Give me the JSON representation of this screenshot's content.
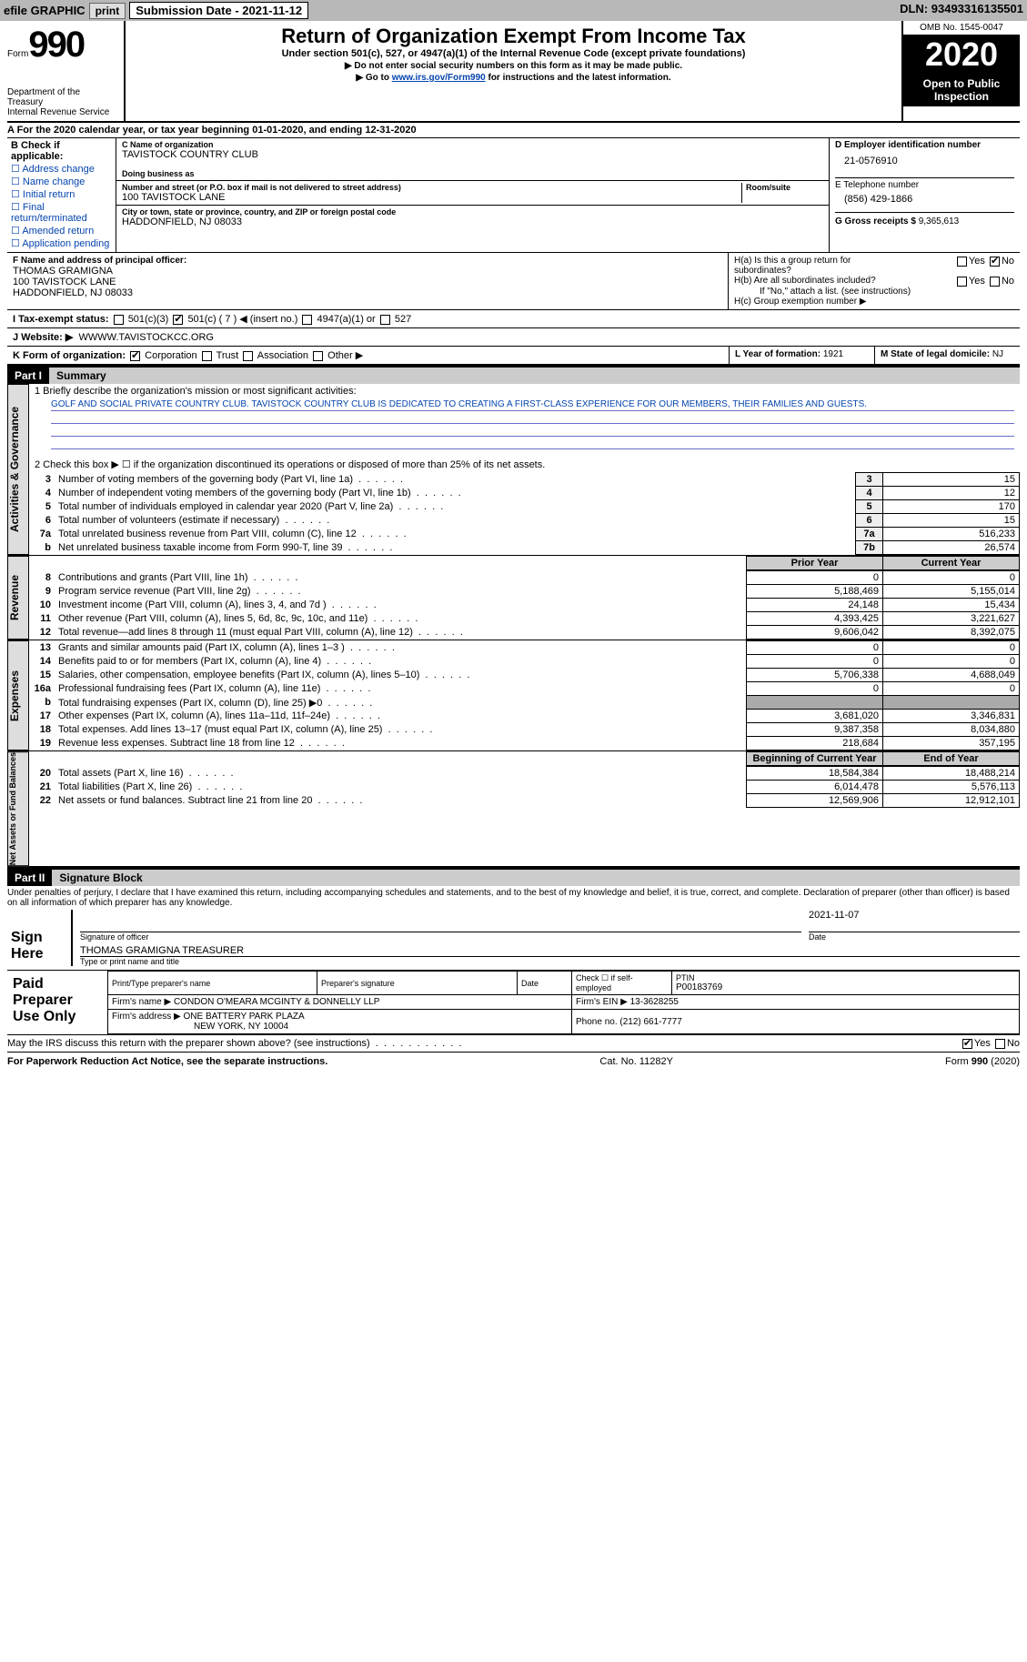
{
  "topbar": {
    "efile": "efile GRAPHIC",
    "print": "print",
    "subdate_label": "Submission Date - ",
    "subdate": "2021-11-12",
    "dln_label": "DLN: ",
    "dln": "93493316135501"
  },
  "header": {
    "form_word": "Form",
    "form_num": "990",
    "dept1": "Department of the Treasury",
    "dept2": "Internal Revenue Service",
    "title": "Return of Organization Exempt From Income Tax",
    "sub": "Under section 501(c), 527, or 4947(a)(1) of the Internal Revenue Code (except private foundations)",
    "note1": "▶ Do not enter social security numbers on this form as it may be made public.",
    "note2_pre": "▶ Go to ",
    "note2_link": "www.irs.gov/Form990",
    "note2_post": " for instructions and the latest information.",
    "omb": "OMB No. 1545-0047",
    "year": "2020",
    "open": "Open to Public Inspection"
  },
  "period": {
    "prefix": "A For the 2020 calendar year, or tax year beginning ",
    "begin": "01-01-2020",
    "mid": ", and ending ",
    "end": "12-31-2020"
  },
  "section_b": {
    "label": "B Check if applicable:",
    "opts": [
      "Address change",
      "Name change",
      "Initial return",
      "Final return/terminated",
      "Amended return",
      "Application pending"
    ]
  },
  "section_c": {
    "name_label": "C Name of organization",
    "name": "TAVISTOCK COUNTRY CLUB",
    "dba_label": "Doing business as",
    "street_label": "Number and street (or P.O. box if mail is not delivered to street address)",
    "room_label": "Room/suite",
    "street": "100 TAVISTOCK LANE",
    "city_label": "City or town, state or province, country, and ZIP or foreign postal code",
    "city": "HADDONFIELD, NJ  08033"
  },
  "section_d": {
    "ein_label": "D Employer identification number",
    "ein": "21-0576910",
    "tel_label": "E Telephone number",
    "tel": "(856) 429-1866",
    "gross_label": "G Gross receipts $ ",
    "gross": "9,365,613"
  },
  "section_f": {
    "label": "F Name and address of principal officer:",
    "name": "THOMAS GRAMIGNA",
    "addr1": "100 TAVISTOCK LANE",
    "addr2": "HADDONFIELD, NJ  08033"
  },
  "section_h": {
    "ha": "H(a)  Is this a group return for subordinates?",
    "hb": "H(b)  Are all subordinates included?",
    "hb_note": "If \"No,\" attach a list. (see instructions)",
    "hc": "H(c)  Group exemption number ▶",
    "yes": "Yes",
    "no": "No"
  },
  "section_i": {
    "label": "I  Tax-exempt status:",
    "c3": "501(c)(3)",
    "c7": "501(c) ( 7 ) ◀ (insert no.)",
    "a1": "4947(a)(1) or",
    "s527": "527"
  },
  "section_j": {
    "label": "J  Website: ▶",
    "url": "WWWW.TAVISTOCKCC.ORG"
  },
  "section_k": {
    "label": "K Form of organization:",
    "corp": "Corporation",
    "trust": "Trust",
    "assoc": "Association",
    "other": "Other ▶"
  },
  "section_l": {
    "label": "L Year of formation: ",
    "val": "1921"
  },
  "section_m": {
    "label": "M State of legal domicile: ",
    "val": "NJ"
  },
  "part1": {
    "label": "Part I",
    "title": "Summary",
    "l1_label": "1  Briefly describe the organization's mission or most significant activities:",
    "l1_text": "GOLF AND SOCIAL PRIVATE COUNTRY CLUB. TAVISTOCK COUNTRY CLUB IS DEDICATED TO CREATING A FIRST-CLASS EXPERIENCE FOR OUR MEMBERS, THEIR FAMILIES AND GUESTS.",
    "l2": "2  Check this box ▶ ☐ if the organization discontinued its operations or disposed of more than 25% of its net assets.",
    "lines_top": [
      {
        "n": "3",
        "t": "Number of voting members of the governing body (Part VI, line 1a)",
        "box": "3",
        "v": "15"
      },
      {
        "n": "4",
        "t": "Number of independent voting members of the governing body (Part VI, line 1b)",
        "box": "4",
        "v": "12"
      },
      {
        "n": "5",
        "t": "Total number of individuals employed in calendar year 2020 (Part V, line 2a)",
        "box": "5",
        "v": "170"
      },
      {
        "n": "6",
        "t": "Total number of volunteers (estimate if necessary)",
        "box": "6",
        "v": "15"
      },
      {
        "n": "7a",
        "t": "Total unrelated business revenue from Part VIII, column (C), line 12",
        "box": "7a",
        "v": "516,233"
      },
      {
        "n": "b",
        "t": "Net unrelated business taxable income from Form 990-T, line 39",
        "box": "7b",
        "v": "26,574"
      }
    ],
    "hdr_prior": "Prior Year",
    "hdr_current": "Current Year",
    "revenue": [
      {
        "n": "8",
        "t": "Contributions and grants (Part VIII, line 1h)",
        "p": "0",
        "c": "0"
      },
      {
        "n": "9",
        "t": "Program service revenue (Part VIII, line 2g)",
        "p": "5,188,469",
        "c": "5,155,014"
      },
      {
        "n": "10",
        "t": "Investment income (Part VIII, column (A), lines 3, 4, and 7d )",
        "p": "24,148",
        "c": "15,434"
      },
      {
        "n": "11",
        "t": "Other revenue (Part VIII, column (A), lines 5, 6d, 8c, 9c, 10c, and 11e)",
        "p": "4,393,425",
        "c": "3,221,627"
      },
      {
        "n": "12",
        "t": "Total revenue—add lines 8 through 11 (must equal Part VIII, column (A), line 12)",
        "p": "9,606,042",
        "c": "8,392,075"
      }
    ],
    "expenses": [
      {
        "n": "13",
        "t": "Grants and similar amounts paid (Part IX, column (A), lines 1–3 )",
        "p": "0",
        "c": "0"
      },
      {
        "n": "14",
        "t": "Benefits paid to or for members (Part IX, column (A), line 4)",
        "p": "0",
        "c": "0"
      },
      {
        "n": "15",
        "t": "Salaries, other compensation, employee benefits (Part IX, column (A), lines 5–10)",
        "p": "5,706,338",
        "c": "4,688,049"
      },
      {
        "n": "16a",
        "t": "Professional fundraising fees (Part IX, column (A), line 11e)",
        "p": "0",
        "c": "0"
      },
      {
        "n": "b",
        "t": "Total fundraising expenses (Part IX, column (D), line 25) ▶0",
        "p": "",
        "c": "",
        "shade": true
      },
      {
        "n": "17",
        "t": "Other expenses (Part IX, column (A), lines 11a–11d, 11f–24e)",
        "p": "3,681,020",
        "c": "3,346,831"
      },
      {
        "n": "18",
        "t": "Total expenses. Add lines 13–17 (must equal Part IX, column (A), line 25)",
        "p": "9,387,358",
        "c": "8,034,880"
      },
      {
        "n": "19",
        "t": "Revenue less expenses. Subtract line 18 from line 12",
        "p": "218,684",
        "c": "357,195"
      }
    ],
    "hdr_begin": "Beginning of Current Year",
    "hdr_end": "End of Year",
    "netassets": [
      {
        "n": "20",
        "t": "Total assets (Part X, line 16)",
        "p": "18,584,384",
        "c": "18,488,214"
      },
      {
        "n": "21",
        "t": "Total liabilities (Part X, line 26)",
        "p": "6,014,478",
        "c": "5,576,113"
      },
      {
        "n": "22",
        "t": "Net assets or fund balances. Subtract line 21 from line 20",
        "p": "12,569,906",
        "c": "12,912,101"
      }
    ],
    "vert_gov": "Activities & Governance",
    "vert_rev": "Revenue",
    "vert_exp": "Expenses",
    "vert_net": "Net Assets or Fund Balances"
  },
  "part2": {
    "label": "Part II",
    "title": "Signature Block",
    "decl": "Under penalties of perjury, I declare that I have examined this return, including accompanying schedules and statements, and to the best of my knowledge and belief, it is true, correct, and complete. Declaration of preparer (other than officer) is based on all information of which preparer has any knowledge.",
    "sign_here": "Sign Here",
    "sig_officer": "Signature of officer",
    "sig_date_label": "Date",
    "sig_date": "2021-11-07",
    "sig_name": "THOMAS GRAMIGNA  TREASURER",
    "sig_name_label": "Type or print name and title",
    "paid_label": "Paid Preparer Use Only",
    "prep_name_label": "Print/Type preparer's name",
    "prep_sig_label": "Preparer's signature",
    "date_label": "Date",
    "check_self": "Check ☐ if self-employed",
    "ptin_label": "PTIN",
    "ptin": "P00183769",
    "firm_name_label": "Firm's name    ▶ ",
    "firm_name": "CONDON O'MEARA MCGINTY & DONNELLY LLP",
    "firm_ein_label": "Firm's EIN ▶ ",
    "firm_ein": "13-3628255",
    "firm_addr_label": "Firm's address ▶ ",
    "firm_addr1": "ONE BATTERY PARK PLAZA",
    "firm_addr2": "NEW YORK, NY  10004",
    "phone_label": "Phone no. ",
    "phone": "(212) 661-7777",
    "discuss": "May the IRS discuss this return with the preparer shown above? (see instructions)"
  },
  "footer": {
    "left": "For Paperwork Reduction Act Notice, see the separate instructions.",
    "mid": "Cat. No. 11282Y",
    "right": "Form 990 (2020)"
  }
}
